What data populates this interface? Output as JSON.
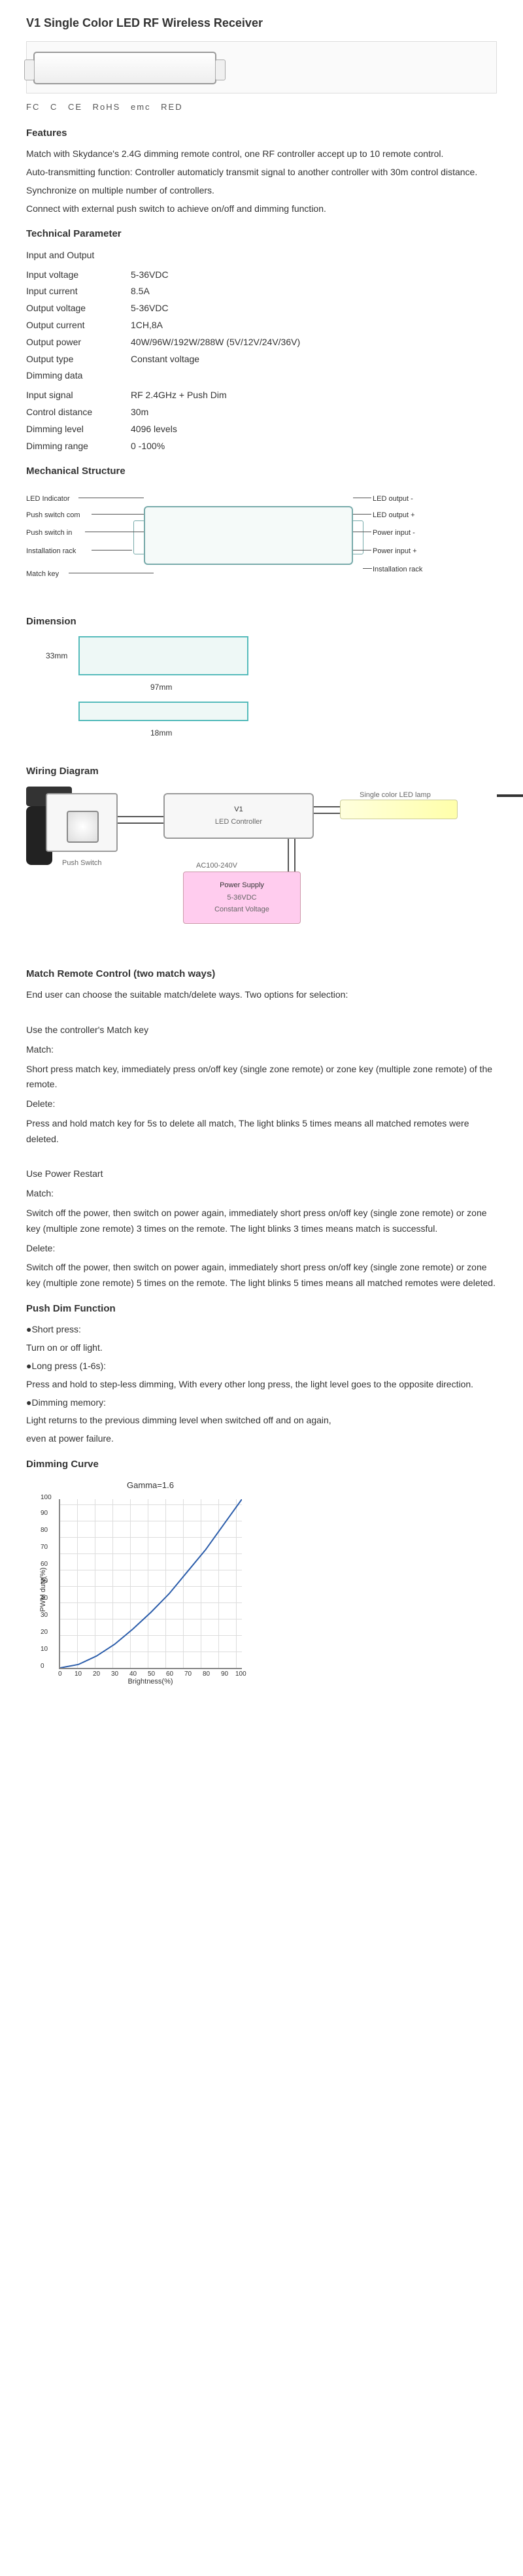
{
  "title": "V1 Single Color LED RF Wireless Receiver",
  "certs": [
    "FC",
    "C",
    "CE",
    "RoHS",
    "emc",
    "RED"
  ],
  "features_heading": "Features",
  "features": [
    "Match with Skydance's 2.4G dimming remote control, one RF controller accept up to 10 remote control.",
    "Auto-transmitting function: Controller automaticly transmit signal to another controller with 30m control distance.",
    "Synchronize on multiple number of controllers.",
    "Connect with external push switch to achieve on/off and dimming function."
  ],
  "tech_heading": "Technical Parameter",
  "io_heading": "Input and Output",
  "params_io": [
    {
      "label": "Input voltage",
      "value": "5-36VDC"
    },
    {
      "label": "Input current",
      "value": "8.5A"
    },
    {
      "label": "Output voltage",
      "value": "5-36VDC"
    },
    {
      "label": "Output current",
      "value": "1CH,8A"
    },
    {
      "label": "Output power",
      "value": "40W/96W/192W/288W (5V/12V/24V/36V)"
    },
    {
      "label": "Output type",
      "value": "Constant voltage"
    }
  ],
  "dimming_heading": "Dimming data",
  "params_dim": [
    {
      "label": "Input signal",
      "value": "RF 2.4GHz + Push Dim"
    },
    {
      "label": "Control distance",
      "value": "30m"
    },
    {
      "label": "Dimming level",
      "value": "4096 levels"
    },
    {
      "label": "Dimming range",
      "value": "0 -100%"
    }
  ],
  "mech_heading": "Mechanical Structure",
  "mech_labels": {
    "led_indicator": "LED Indicator",
    "push_switch_com": "Push switch com",
    "push_switch_in": "Push switch in",
    "installation_rack_l": "Installation rack",
    "match_key": "Match key",
    "led_out_minus": "LED output -",
    "led_out_plus": "LED output +",
    "power_minus": "Power input -",
    "power_plus": "Power input +",
    "installation_rack_r": "Installation rack"
  },
  "dim_heading": "Dimension",
  "dims": {
    "height": "33mm",
    "width": "97mm",
    "depth": "18mm"
  },
  "wiring_heading": "Wiring Diagram",
  "wiring": {
    "push_switch": "Push Switch",
    "controller_title": "V1",
    "controller_sub": "LED Controller",
    "strip": "Single color LED lamp",
    "ps_line1": "AC100-240V",
    "ps_title": "Power Supply",
    "ps_sub1": "5-36VDC",
    "ps_sub2": "Constant Voltage"
  },
  "match_heading": "Match Remote Control (two match ways)",
  "match_intro": "End user can choose the suitable match/delete ways. Two options for selection:",
  "match_way1_title": "Use the controller's Match key",
  "match_label": "Match:",
  "match_way1_match": "Short press match key,  immediately  press  on/off key (single zone remote) or zone key (multiple zone remote) of the remote.",
  "delete_label": "Delete:",
  "match_way1_delete": "Press and hold match key for 5s to delete all match, The light blinks 5 times means all matched remotes were deleted.",
  "match_way2_title": "Use Power Restart",
  "match_way2_match": "Switch off the power, then switch on power again, immediately short press on/off key (single zone remote) or zone key (multiple zone remote) 3 times on the remote. The light blinks 3 times means match is successful.",
  "match_way2_delete": "Switch off the power, then switch on power again, immediately short press on/off key (single zone remote) or zone key (multiple zone remote) 5 times on the remote. The light blinks 5 times means all matched remotes were deleted.",
  "push_heading": "Push Dim Function",
  "push": {
    "short_label": "●Short press:",
    "short_text": "Turn on or off light.",
    "long_label": "●Long press (1-6s):",
    "long_text": "Press and hold to step-less dimming, With every other long press, the light level goes to the opposite direction.",
    "mem_label": "●Dimming memory:",
    "mem_text1": "Light returns to the previous dimming level when switched off and on again,",
    "mem_text2": "even at power failure."
  },
  "curve_heading": "Dimming Curve",
  "curve": {
    "title": "Gamma=1.6",
    "ylabel": "PWM duty(%)",
    "xlabel": "Brightness(%)",
    "ylim": [
      0,
      100
    ],
    "xlim": [
      0,
      100
    ],
    "yticks": [
      0,
      10,
      20,
      30,
      40,
      50,
      60,
      70,
      80,
      90,
      100
    ],
    "xticks": [
      0,
      10,
      20,
      30,
      40,
      50,
      60,
      70,
      80,
      90,
      100
    ],
    "line_color": "#2a5caa",
    "grid_color": "#dddddd",
    "points": [
      [
        0,
        0
      ],
      [
        10,
        2
      ],
      [
        20,
        7
      ],
      [
        30,
        14
      ],
      [
        40,
        23
      ],
      [
        50,
        33
      ],
      [
        60,
        44
      ],
      [
        70,
        57
      ],
      [
        80,
        70
      ],
      [
        90,
        85
      ],
      [
        100,
        100
      ]
    ]
  }
}
